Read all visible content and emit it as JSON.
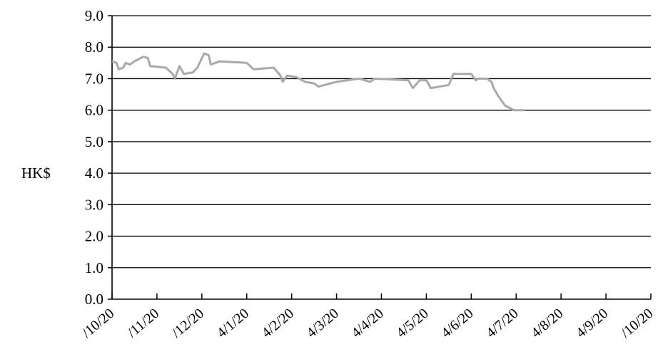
{
  "chart_data": {
    "type": "line",
    "title": "",
    "xlabel": "",
    "ylabel": "HK$",
    "ylim": [
      0,
      9
    ],
    "ytick_labels": [
      "0.0",
      "1.0",
      "2.0",
      "3.0",
      "4.0",
      "5.0",
      "6.0",
      "7.0",
      "8.0",
      "9.0"
    ],
    "xtick_labels": [
      "/10/20",
      "/11/20",
      "/12/20",
      "4/1/20",
      "4/2/20",
      "4/3/20",
      "4/4/20",
      "4/5/20",
      "4/6/20",
      "4/7/20",
      "4/8/20",
      "4/9/20",
      "/10/20"
    ],
    "grid": "horizontal",
    "line_color": "#a9a9a9",
    "series": [
      {
        "values": [
          [
            0.0,
            7.55
          ],
          [
            0.1,
            7.5
          ],
          [
            0.15,
            7.3
          ],
          [
            0.25,
            7.35
          ],
          [
            0.3,
            7.5
          ],
          [
            0.4,
            7.45
          ],
          [
            0.5,
            7.55
          ],
          [
            0.7,
            7.7
          ],
          [
            0.8,
            7.65
          ],
          [
            0.85,
            7.4
          ],
          [
            1.2,
            7.35
          ],
          [
            1.35,
            7.15
          ],
          [
            1.4,
            7.0
          ],
          [
            1.5,
            7.4
          ],
          [
            1.6,
            7.15
          ],
          [
            1.8,
            7.2
          ],
          [
            1.9,
            7.35
          ],
          [
            2.05,
            7.8
          ],
          [
            2.15,
            7.75
          ],
          [
            2.2,
            7.45
          ],
          [
            2.4,
            7.55
          ],
          [
            3.0,
            7.5
          ],
          [
            3.15,
            7.3
          ],
          [
            3.6,
            7.35
          ],
          [
            3.75,
            7.1
          ],
          [
            3.8,
            6.9
          ],
          [
            3.9,
            7.1
          ],
          [
            4.1,
            7.05
          ],
          [
            4.3,
            6.9
          ],
          [
            4.5,
            6.85
          ],
          [
            4.6,
            6.75
          ],
          [
            5.0,
            6.9
          ],
          [
            5.5,
            7.0
          ],
          [
            5.75,
            6.9
          ],
          [
            5.85,
            7.0
          ],
          [
            6.6,
            6.95
          ],
          [
            6.7,
            6.7
          ],
          [
            6.85,
            6.95
          ],
          [
            7.0,
            6.95
          ],
          [
            7.1,
            6.7
          ],
          [
            7.5,
            6.8
          ],
          [
            7.6,
            7.15
          ],
          [
            8.0,
            7.15
          ],
          [
            8.1,
            6.95
          ],
          [
            8.15,
            7.0
          ],
          [
            8.35,
            7.0
          ],
          [
            8.45,
            6.9
          ],
          [
            8.5,
            6.7
          ],
          [
            8.6,
            6.45
          ],
          [
            8.75,
            6.15
          ],
          [
            8.95,
            6.0
          ],
          [
            9.2,
            6.0
          ]
        ]
      }
    ]
  }
}
